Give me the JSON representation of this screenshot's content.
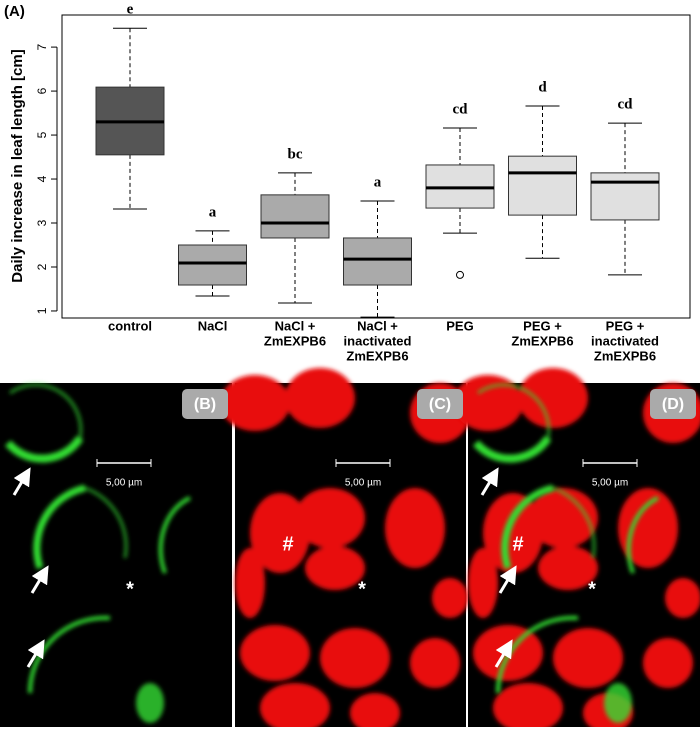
{
  "chart_data": {
    "type": "box",
    "title": "(A)",
    "y_label": "Daily increase in leaf length [cm]",
    "categories": [
      [
        "control"
      ],
      [
        "NaCl"
      ],
      [
        "NaCl +",
        "ZmEXPB6"
      ],
      [
        "NaCl +",
        "inactivated",
        "ZmEXPB6"
      ],
      [
        "PEG"
      ],
      [
        "PEG +",
        "ZmEXPB6"
      ],
      [
        "PEG +",
        "inactivated",
        "ZmEXPB6"
      ]
    ],
    "boxes": [
      {
        "whisker_low": 3.32,
        "q1": 4.55,
        "median": 5.3,
        "q3": 6.09,
        "whisker_high": 7.43,
        "outliers": []
      },
      {
        "whisker_low": 1.34,
        "q1": 1.59,
        "median": 2.09,
        "q3": 2.5,
        "whisker_high": 2.82,
        "outliers": []
      },
      {
        "whisker_low": 1.18,
        "q1": 2.66,
        "median": 3.0,
        "q3": 3.64,
        "whisker_high": 4.14,
        "outliers": []
      },
      {
        "whisker_low": 0.86,
        "q1": 1.59,
        "median": 2.18,
        "q3": 2.66,
        "whisker_high": 3.5,
        "outliers": []
      },
      {
        "whisker_low": 2.77,
        "q1": 3.34,
        "median": 3.8,
        "q3": 4.32,
        "whisker_high": 5.16,
        "outliers": [
          1.82
        ]
      },
      {
        "whisker_low": 2.2,
        "q1": 3.18,
        "median": 4.14,
        "q3": 4.52,
        "whisker_high": 5.66,
        "outliers": []
      },
      {
        "whisker_low": 1.82,
        "q1": 3.07,
        "median": 3.93,
        "q3": 4.14,
        "whisker_high": 5.27,
        "outliers": []
      }
    ],
    "colors": [
      "#555555",
      "#aaaaaa",
      "#aaaaaa",
      "#aaaaaa",
      "#e0e0e0",
      "#e0e0e0",
      "#e0e0e0"
    ],
    "group_labels": [
      "e",
      "a",
      "bc",
      "a",
      "cd",
      "d",
      "cd"
    ],
    "ylim": [
      0.84,
      7.73
    ],
    "yticks": [
      1,
      2,
      3,
      4,
      5,
      6,
      7
    ]
  },
  "panels": [
    {
      "label": "(B)",
      "scale_bar": "5,00 µm",
      "marks": [
        "*"
      ]
    },
    {
      "label": "(C)",
      "scale_bar": "5,00 µm",
      "marks": [
        "#",
        "*"
      ]
    },
    {
      "label": "(D)",
      "scale_bar": "5,00 µm",
      "marks": [
        "#",
        "*"
      ]
    }
  ]
}
